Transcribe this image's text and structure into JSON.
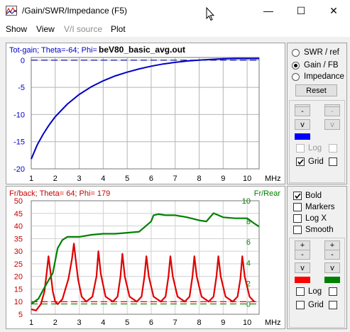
{
  "window": {
    "title": "/Gain/SWR/Impedance (F5)",
    "minimize_glyph": "—",
    "maximize_glyph": "☐",
    "close_glyph": "✕"
  },
  "menu": [
    "Show",
    "View",
    "V/I source",
    "Plot"
  ],
  "menu_disabled": [
    false,
    false,
    true,
    false
  ],
  "top_plot": {
    "header_left": "Tot-gain; Theta=-64; Phi=",
    "header_title": "beV80_basic_avg.out",
    "header_color": "#0000c8",
    "y_ticks": [
      "0",
      "-5",
      "-10",
      "-15",
      "-20"
    ],
    "x_ticks": [
      "1",
      "2",
      "3",
      "4",
      "5",
      "6",
      "7",
      "8",
      "9",
      "10"
    ],
    "x_unit": "MHz"
  },
  "bottom_plot": {
    "header_left": "Fr/back; Theta= 64; Phi= 179",
    "header_right": "Fr/Rear",
    "left_color": "#c80000",
    "right_color": "#008000",
    "y_ticks_left": [
      "50",
      "45",
      "40",
      "35",
      "30",
      "25",
      "20",
      "15",
      "10",
      "5"
    ],
    "y_ticks_right": [
      "10",
      "8",
      "6",
      "4",
      "2",
      "0"
    ],
    "x_ticks": [
      "1",
      "2",
      "3",
      "4",
      "5",
      "6",
      "7",
      "8",
      "9",
      "10"
    ],
    "x_unit": "MHz"
  },
  "right_panel_top": {
    "radios": [
      {
        "label": "SWR / ref",
        "checked": false
      },
      {
        "label": "Gain / FB",
        "checked": true
      },
      {
        "label": "Impedance",
        "checked": false
      }
    ],
    "reset_label": "Reset",
    "minus": "-",
    "v": "v",
    "swatch_color": "#0000ff",
    "log_label": "Log",
    "grid_label": "Grid",
    "grid_checked": true
  },
  "right_panel_bottom": {
    "checks": [
      {
        "label": "Bold",
        "checked": true
      },
      {
        "label": "Markers",
        "checked": false
      },
      {
        "label": "Log X",
        "checked": false
      },
      {
        "label": "Smooth",
        "checked": false
      }
    ],
    "plus": "+",
    "minus": "-",
    "v": "v",
    "swatch_left": "#ff0000",
    "swatch_right": "#008000",
    "log_label": "Log",
    "grid_label": "Grid"
  },
  "chart_data": [
    {
      "type": "line",
      "title": "beV80_basic_avg.out",
      "ylabel": "Tot-gain; Theta=-64; Phi=",
      "xlabel": "MHz",
      "xlim": [
        1,
        10.5
      ],
      "ylim": [
        -20,
        0.5
      ],
      "series": [
        {
          "name": "Tot-gain",
          "color": "#0000c8",
          "x": [
            1,
            1.25,
            1.5,
            1.75,
            2,
            2.5,
            3,
            3.5,
            4,
            4.5,
            5,
            5.5,
            6,
            6.5,
            7,
            7.5,
            8,
            8.5,
            9,
            9.5,
            10,
            10.5
          ],
          "y": [
            -18.2,
            -15.6,
            -13.6,
            -11.9,
            -10.4,
            -8.1,
            -6.3,
            -4.9,
            -3.8,
            -2.9,
            -2.2,
            -1.6,
            -1.1,
            -0.7,
            -0.4,
            -0.15,
            0.0,
            0.15,
            0.25,
            0.3,
            0.3,
            0.3
          ]
        }
      ],
      "reference_line": 0
    },
    {
      "type": "line",
      "title": "Fr/back; Theta= 64; Phi= 179",
      "xlabel": "MHz",
      "xlim": [
        1,
        10.5
      ],
      "ylim_left": [
        5,
        50
      ],
      "ylim_right": [
        -1,
        10
      ],
      "series": [
        {
          "name": "Fr/back",
          "axis": "left",
          "color": "#e00000",
          "x": [
            1,
            1.2,
            1.4,
            1.55,
            1.65,
            1.72,
            1.8,
            1.9,
            2.0,
            2.1,
            2.3,
            2.55,
            2.7,
            2.78,
            2.85,
            2.95,
            3.1,
            3.3,
            3.55,
            3.72,
            3.8,
            3.9,
            4.1,
            4.4,
            4.6,
            4.72,
            4.8,
            4.9,
            5.1,
            5.4,
            5.6,
            5.72,
            5.8,
            5.9,
            6.1,
            6.4,
            6.6,
            6.72,
            6.8,
            6.9,
            7.1,
            7.4,
            7.6,
            7.72,
            7.8,
            7.9,
            8.1,
            8.4,
            8.6,
            8.72,
            8.8,
            8.9,
            9.1,
            9.4,
            9.6,
            9.72,
            9.8,
            9.9,
            10.1,
            10.3
          ],
          "y": [
            7,
            6.5,
            9,
            14,
            22,
            28,
            22,
            14,
            10,
            9,
            11,
            19,
            27,
            33,
            27,
            19,
            12,
            10,
            12,
            20,
            30,
            21,
            12,
            10,
            12,
            20,
            29,
            20,
            12,
            10,
            12,
            20,
            28,
            20,
            12,
            10,
            12,
            20,
            28,
            20,
            12,
            10,
            12,
            20,
            28,
            20,
            12,
            10,
            12,
            20,
            28,
            20,
            12,
            10,
            12,
            19,
            28,
            20,
            12,
            10
          ]
        },
        {
          "name": "Fr/Rear",
          "axis": "right",
          "color": "#008000",
          "x": [
            1,
            1.3,
            1.6,
            1.9,
            2.1,
            2.3,
            2.5,
            3.0,
            3.5,
            4.0,
            4.5,
            5.0,
            5.5,
            5.8,
            6.0,
            6.1,
            6.3,
            6.6,
            7.0,
            7.5,
            8.0,
            8.3,
            8.6,
            8.8,
            9.0,
            9.5,
            10.0,
            10.3,
            10.5
          ],
          "y": [
            0,
            0.5,
            1.8,
            3.0,
            5.4,
            6.2,
            6.5,
            6.5,
            6.7,
            6.8,
            6.8,
            6.9,
            7.0,
            7.6,
            8.0,
            8.6,
            8.7,
            8.6,
            8.6,
            8.4,
            8.1,
            8.0,
            8.8,
            8.6,
            8.4,
            8.3,
            8.3,
            7.8,
            7.5
          ]
        }
      ],
      "reference_lines": [
        {
          "axis": "right",
          "value": 0,
          "color": "#008000"
        },
        {
          "axis": "left",
          "value": 10,
          "color": "#e00000"
        }
      ]
    }
  ]
}
